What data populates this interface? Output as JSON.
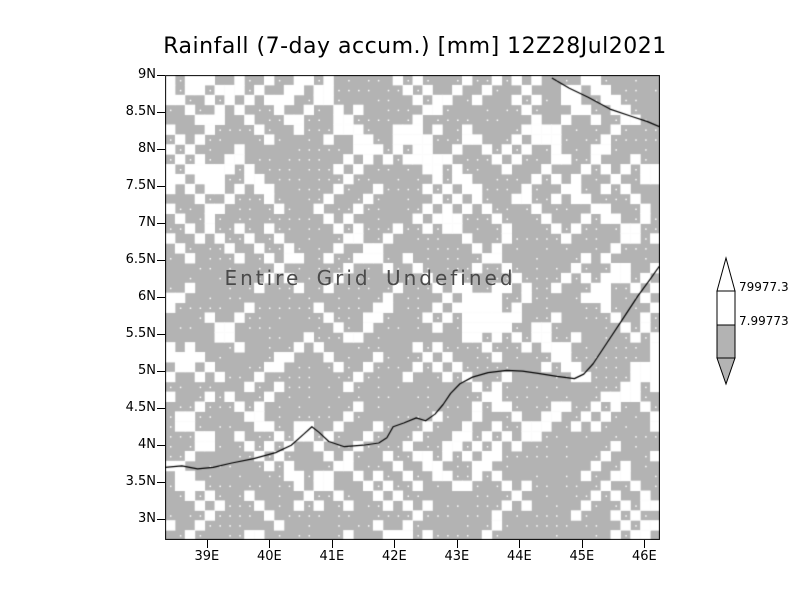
{
  "title": "Rainfall (7-day accum.) [mm] 12Z28Jul2021",
  "plot": {
    "message": "Entire Grid Undefined",
    "background_color": "#b3b3b3",
    "speckle_color": "#ffffff",
    "coastline_color": "#000000"
  },
  "axes": {
    "y_ticks": [
      "9N",
      "8.5N",
      "8N",
      "7.5N",
      "7N",
      "6.5N",
      "6N",
      "5.5N",
      "5N",
      "4.5N",
      "4N",
      "3.5N",
      "3N"
    ],
    "x_ticks": [
      "39E",
      "40E",
      "41E",
      "42E",
      "43E",
      "44E",
      "45E",
      "46E"
    ]
  },
  "colorbar": {
    "labels": [
      "79977.3",
      "7.99773"
    ],
    "colors": [
      "#ffffff",
      "#b3b3b3"
    ]
  },
  "chart_data": {
    "type": "heatmap",
    "title": "Rainfall (7-day accum.) [mm] 12Z28Jul2021",
    "status": "Entire Grid Undefined",
    "xlabel": "",
    "ylabel": "",
    "x_range": [
      38.33,
      46.25
    ],
    "y_range": [
      2.72,
      9.0
    ],
    "x_tick_values": [
      39,
      40,
      41,
      42,
      43,
      44,
      45,
      46
    ],
    "y_tick_values": [
      9,
      8.5,
      8,
      7.5,
      7,
      6.5,
      6,
      5.5,
      5,
      4.5,
      4,
      3.5,
      3
    ],
    "colorbar_levels": [
      7.99773,
      79977.3
    ],
    "values": "undefined (entire grid undefined; background shown as gray with white undefined-speckle pattern)",
    "coastlines": [
      [
        [
          44.52,
          8.96
        ],
        [
          44.8,
          8.82
        ],
        [
          45.1,
          8.7
        ],
        [
          45.45,
          8.54
        ],
        [
          45.8,
          8.44
        ],
        [
          46.05,
          8.37
        ],
        [
          46.25,
          8.3
        ]
      ],
      [
        [
          38.33,
          3.7
        ],
        [
          38.6,
          3.72
        ],
        [
          38.85,
          3.68
        ],
        [
          39.1,
          3.7
        ],
        [
          39.4,
          3.76
        ],
        [
          39.75,
          3.82
        ],
        [
          40.1,
          3.9
        ],
        [
          40.35,
          4.0
        ],
        [
          40.55,
          4.15
        ],
        [
          40.68,
          4.25
        ],
        [
          40.8,
          4.17
        ],
        [
          40.95,
          4.05
        ],
        [
          41.2,
          3.98
        ],
        [
          41.5,
          4.0
        ],
        [
          41.75,
          4.03
        ],
        [
          41.88,
          4.1
        ],
        [
          41.98,
          4.25
        ],
        [
          42.15,
          4.3
        ],
        [
          42.35,
          4.37
        ],
        [
          42.5,
          4.33
        ],
        [
          42.65,
          4.42
        ],
        [
          42.78,
          4.55
        ],
        [
          42.9,
          4.7
        ],
        [
          43.05,
          4.83
        ],
        [
          43.25,
          4.92
        ],
        [
          43.5,
          4.98
        ],
        [
          43.8,
          5.01
        ],
        [
          44.05,
          5.0
        ],
        [
          44.3,
          4.97
        ],
        [
          44.6,
          4.93
        ],
        [
          44.88,
          4.9
        ],
        [
          45.03,
          4.96
        ],
        [
          45.18,
          5.1
        ],
        [
          45.4,
          5.38
        ],
        [
          45.65,
          5.7
        ],
        [
          45.9,
          6.02
        ],
        [
          46.1,
          6.25
        ],
        [
          46.25,
          6.43
        ]
      ]
    ]
  }
}
